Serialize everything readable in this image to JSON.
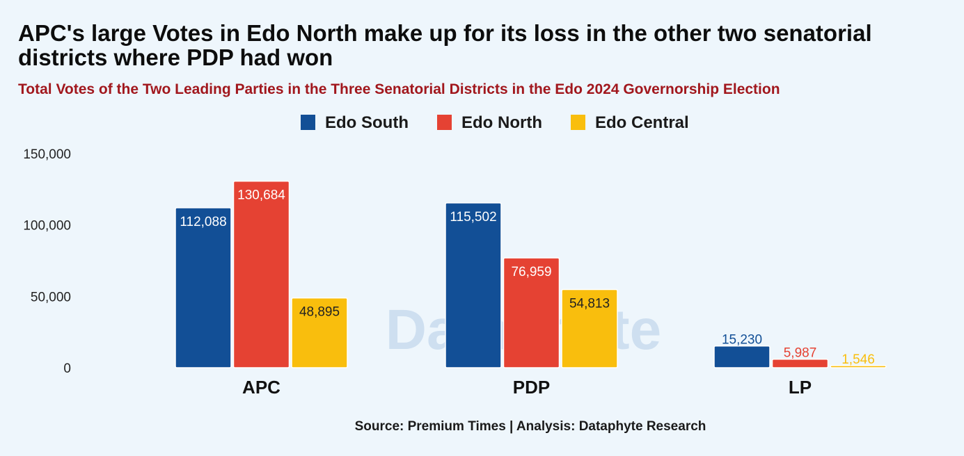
{
  "title": "APC's large Votes in Edo North make up for its loss in the other two senatorial districts where PDP had won",
  "subtitle": "Total Votes of the Two Leading Parties in the Three Senatorial Districts in the Edo 2024 Governorship Election",
  "source": "Source: Premium Times | Analysis: Dataphyte Research",
  "watermark": "Dataphyte",
  "chart_data": {
    "type": "bar",
    "categories": [
      "APC",
      "PDP",
      "LP"
    ],
    "series": [
      {
        "name": "Edo South",
        "color": "#124f96",
        "values": [
          112088,
          115502,
          15230
        ],
        "labels": [
          "112,088",
          "115,502",
          "15,230"
        ]
      },
      {
        "name": "Edo North",
        "color": "#e54233",
        "values": [
          130684,
          76959,
          5987
        ],
        "labels": [
          "130,684",
          "76,959",
          "5,987"
        ]
      },
      {
        "name": "Edo Central",
        "color": "#f9be0d",
        "values": [
          48895,
          54813,
          1546
        ],
        "labels": [
          "48,895",
          "54,813",
          "1,546"
        ]
      }
    ],
    "yticks": [
      {
        "value": 0,
        "label": "0"
      },
      {
        "value": 50000,
        "label": "50,000"
      },
      {
        "value": 100000,
        "label": "100,000"
      },
      {
        "value": 150000,
        "label": "150,000"
      }
    ],
    "ylim": [
      0,
      150000
    ],
    "legend_position": "top-center",
    "grid": false
  }
}
